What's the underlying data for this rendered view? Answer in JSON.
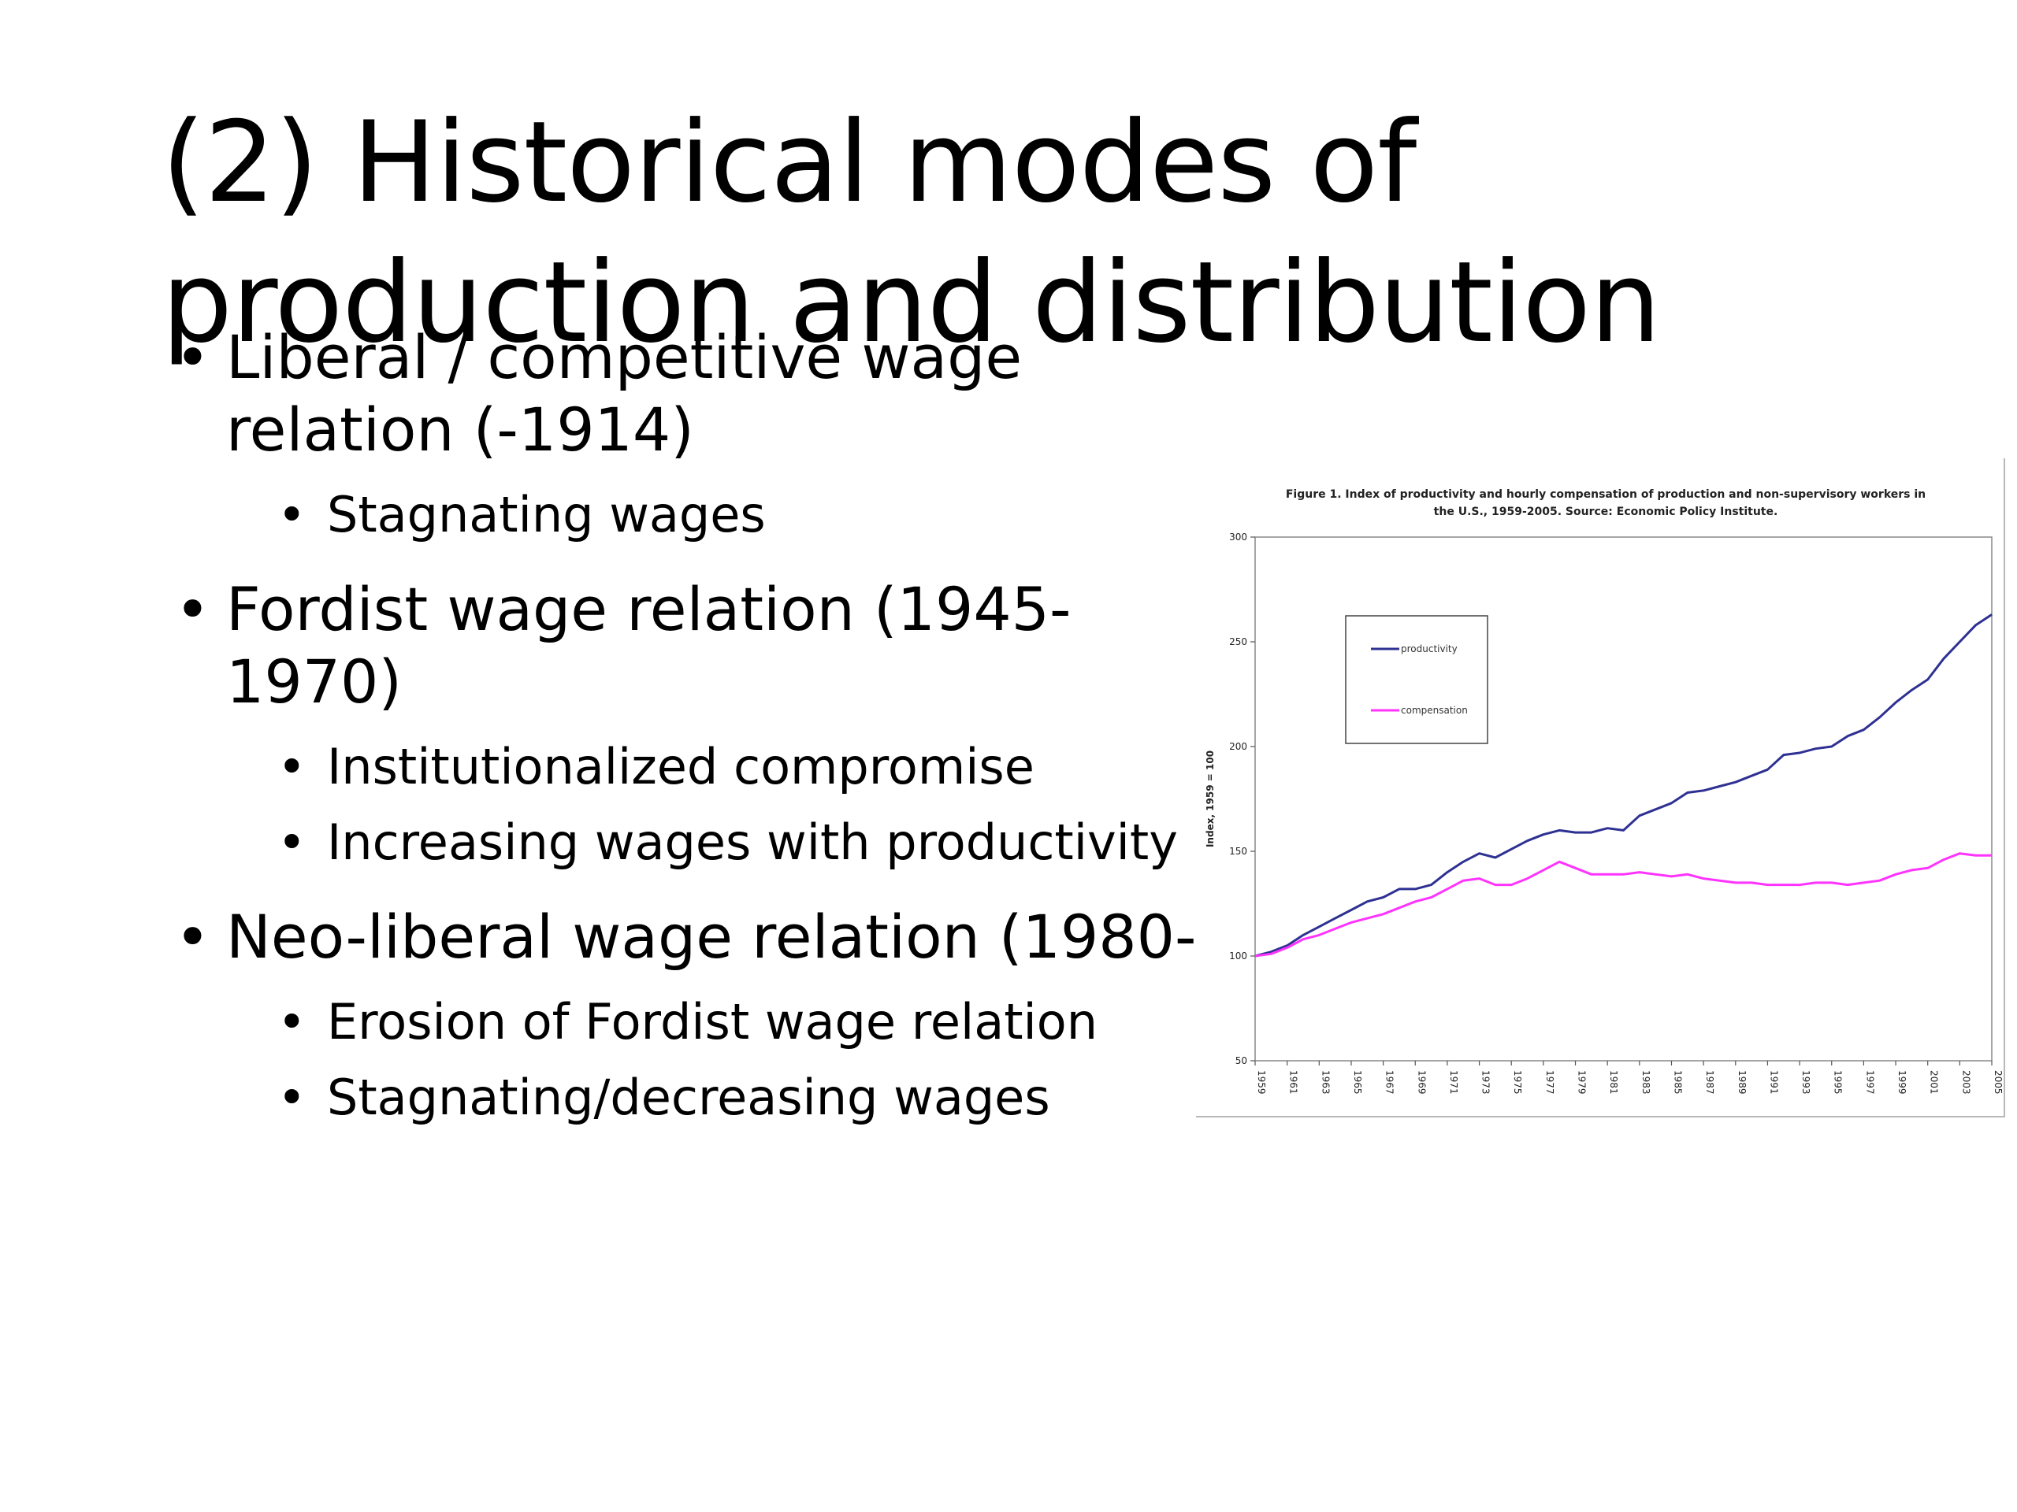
{
  "slide": {
    "title": "(2) Historical modes of production and distribution",
    "bullets": [
      {
        "text": "Liberal / competitive wage relation (-1914)",
        "sub": [
          "Stagnating wages"
        ]
      },
      {
        "text": "Fordist wage relation (1945-1970)",
        "sub": [
          "Institutionalized compromise",
          "Increasing wages with productivity"
        ]
      },
      {
        "text": "Neo-liberal wage relation (1980-",
        "sub": [
          "Erosion of Fordist wage relation",
          "Stagnating/decreasing wages"
        ]
      }
    ]
  },
  "figure": {
    "caption_line1": "Figure 1. Index of productivity and hourly compensation of production and non-supervisory workers in",
    "caption_line2": "the U.S., 1959-2005. Source: Economic Policy Institute."
  },
  "chart_data": {
    "type": "line",
    "title": "Figure 1. Index of productivity and hourly compensation of production and non-supervisory workers in the U.S., 1959-2005. Source: Economic Policy Institute.",
    "xlabel": "",
    "ylabel": "Index, 1959 = 100",
    "ylim": [
      50,
      300
    ],
    "yticks": [
      50,
      100,
      150,
      200,
      250,
      300
    ],
    "xlim": [
      1959,
      2005
    ],
    "xticks": [
      1959,
      1961,
      1963,
      1965,
      1967,
      1969,
      1971,
      1973,
      1975,
      1977,
      1979,
      1981,
      1983,
      1985,
      1987,
      1989,
      1991,
      1993,
      1995,
      1997,
      1999,
      2001,
      2003,
      2005
    ],
    "grid": false,
    "legend_position": "top-left",
    "x": [
      1959,
      1960,
      1961,
      1962,
      1963,
      1964,
      1965,
      1966,
      1967,
      1968,
      1969,
      1970,
      1971,
      1972,
      1973,
      1974,
      1975,
      1976,
      1977,
      1978,
      1979,
      1980,
      1981,
      1982,
      1983,
      1984,
      1985,
      1986,
      1987,
      1988,
      1989,
      1990,
      1991,
      1992,
      1993,
      1994,
      1995,
      1996,
      1997,
      1998,
      1999,
      2000,
      2001,
      2002,
      2003,
      2004,
      2005
    ],
    "series": [
      {
        "name": "productivity",
        "color": "#2e3192",
        "values": [
          100,
          102,
          105,
          110,
          114,
          118,
          122,
          126,
          128,
          132,
          132,
          134,
          140,
          145,
          149,
          147,
          151,
          155,
          158,
          160,
          159,
          159,
          161,
          160,
          167,
          170,
          173,
          178,
          179,
          181,
          183,
          186,
          189,
          196,
          197,
          199,
          200,
          205,
          208,
          214,
          221,
          227,
          232,
          242,
          250,
          258,
          263
        ]
      },
      {
        "name": "compensation",
        "color": "#ff33ff",
        "values": [
          100,
          101,
          104,
          108,
          110,
          113,
          116,
          118,
          120,
          123,
          126,
          128,
          132,
          136,
          137,
          134,
          134,
          137,
          141,
          145,
          142,
          139,
          139,
          139,
          140,
          139,
          138,
          139,
          137,
          136,
          135,
          135,
          134,
          134,
          134,
          135,
          135,
          134,
          135,
          136,
          139,
          141,
          142,
          146,
          149,
          148,
          148
        ]
      }
    ]
  }
}
